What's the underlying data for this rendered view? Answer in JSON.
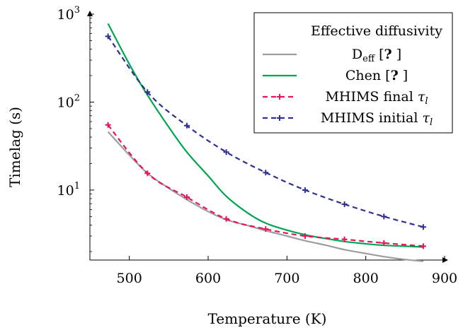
{
  "chart_data": {
    "type": "line",
    "xlabel": "Temperature (K)",
    "ylabel": "Timelag (s)",
    "xlim": [
      450,
      900
    ],
    "ylim": [
      1.6,
      1000
    ],
    "yscale": "log",
    "x_ticks": [
      500,
      600,
      700,
      800,
      900
    ],
    "y_ticks": [
      {
        "value": 10,
        "base": "10",
        "exp": "1"
      },
      {
        "value": 100,
        "base": "10",
        "exp": "2"
      },
      {
        "value": 1000,
        "base": "10",
        "exp": "3"
      }
    ],
    "grid": false,
    "legend": {
      "title": "Effective diffusivity",
      "placement": "top-right"
    },
    "series": [
      {
        "name_main": "D",
        "name_sub": "eff",
        "name_rest": " [",
        "name_bold": "?",
        "name_end": " ]",
        "color": "#9e9e9e",
        "style": "solid",
        "marker": "none",
        "x": [
          473,
          500,
          523,
          550,
          573,
          600,
          623,
          650,
          673,
          700,
          723,
          750,
          773,
          800,
          823,
          850,
          873
        ],
        "y": [
          46,
          25,
          15.5,
          10.5,
          7.8,
          5.7,
          4.6,
          3.95,
          3.45,
          3.0,
          2.65,
          2.35,
          2.1,
          1.9,
          1.75,
          1.62,
          1.55
        ]
      },
      {
        "name_main": "Chen",
        "name_sub": "",
        "name_rest": " [",
        "name_bold": "?",
        "name_end": " ]",
        "color": "#00a550",
        "style": "solid",
        "marker": "none",
        "x": [
          473,
          500,
          523,
          550,
          573,
          600,
          623,
          650,
          673,
          700,
          723,
          750,
          773,
          800,
          823,
          850,
          873
        ],
        "y": [
          780,
          270,
          120,
          52,
          27,
          14.5,
          8.5,
          5.5,
          4.2,
          3.5,
          3.1,
          2.8,
          2.6,
          2.45,
          2.35,
          2.3,
          2.25
        ]
      },
      {
        "name_main": "MHIMS final ",
        "name_sub": "",
        "name_rest": "",
        "name_bold": "",
        "name_end": "",
        "tau": "τ",
        "tau_sub": "l",
        "color": "#e8135a",
        "style": "dashed",
        "marker": "+",
        "x": [
          473,
          523,
          573,
          623,
          673,
          723,
          773,
          823,
          873
        ],
        "y": [
          55,
          15.5,
          8.3,
          4.7,
          3.6,
          3.0,
          2.75,
          2.5,
          2.3
        ]
      },
      {
        "name_main": "MHIMS initial ",
        "name_sub": "",
        "name_rest": "",
        "name_bold": "",
        "name_end": "",
        "tau": "τ",
        "tau_sub": "l",
        "color": "#2e3192",
        "style": "dashed",
        "marker": "+",
        "x": [
          473,
          523,
          573,
          623,
          673,
          723,
          773,
          823,
          873
        ],
        "y": [
          560,
          130,
          54,
          27,
          15.8,
          10,
          6.9,
          5,
          3.8
        ]
      }
    ]
  }
}
